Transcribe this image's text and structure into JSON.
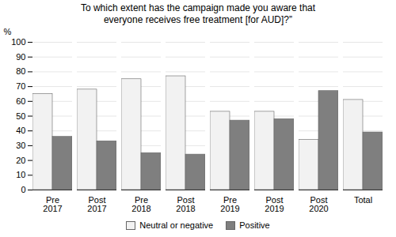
{
  "chart_data": {
    "type": "bar",
    "title": "To which extent has the campaign made you aware that\neveryone receives free treatment [for AUD]?”",
    "categories": [
      "Pre\n2017",
      "Post\n2017",
      "Pre\n2018",
      "Post\n2018",
      "Pre\n2019",
      "Post\n2019",
      "Post\n2020",
      "Total"
    ],
    "series": [
      {
        "name": "Neutral or negative",
        "color": "#f2f2f2",
        "values": [
          65,
          68,
          75,
          77,
          53,
          53,
          34,
          61
        ]
      },
      {
        "name": "Positive",
        "color": "#7f7f7f",
        "values": [
          36,
          33,
          25,
          24,
          47,
          48,
          67,
          39
        ]
      }
    ],
    "ylabel": "%",
    "ylim": [
      0,
      100
    ],
    "yticks": [
      0,
      10,
      20,
      30,
      40,
      50,
      60,
      70,
      80,
      90,
      100
    ],
    "grid": true,
    "legend": "bottom"
  }
}
